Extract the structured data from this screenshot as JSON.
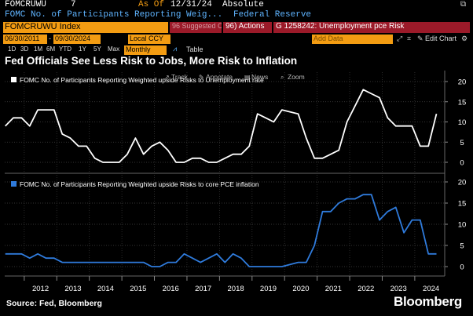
{
  "header": {
    "ticker": "FOMCRUWU",
    "page_num": "7",
    "as_of_label": "As Of",
    "as_of_date": "12/31/24",
    "absolute_label": "Absolute",
    "description": "FOMC No. of Participants Reporting Weig...",
    "source_name": "Federal Reserve",
    "index_box": "FOMCRUWU Index",
    "suggested_charts": "96 Suggested Charts",
    "actions": "96) Actions",
    "g_chart": "G 1258242: Unemployment pce Risk"
  },
  "controls": {
    "start_date": "06/30/2011",
    "end_date": "09/30/2024",
    "currency": "Local CCY",
    "add_data": "Add Data",
    "edit_chart": "Edit Chart",
    "range_buttons": [
      "1D",
      "3D",
      "1M",
      "6M",
      "YTD",
      "1Y",
      "5Y",
      "Max"
    ],
    "frequency": "Monthly",
    "table_label": "Table",
    "toolbar": [
      "Track",
      "Annotate",
      "News",
      "Zoom"
    ]
  },
  "headline": "Fed Officials See Less Risk to Jobs, More Risk to Inflation",
  "footer": {
    "source": "Source: Fed, Bloomberg",
    "brand": "Bloomberg"
  },
  "colors": {
    "series1": "#ffffff",
    "series2": "#2f7bdc",
    "accent_orange": "#f39c12",
    "accent_red": "#9b1a29"
  },
  "chart_data": [
    {
      "type": "line",
      "title": "FOMC No. of Participants Reporting Weighted upside Risks to Unemployment rate",
      "x": [
        "2011-06",
        "2011-09",
        "2011-12",
        "2012-03",
        "2012-06",
        "2012-09",
        "2012-12",
        "2013-03",
        "2013-06",
        "2013-09",
        "2013-12",
        "2014-03",
        "2014-06",
        "2014-09",
        "2014-12",
        "2015-03",
        "2015-06",
        "2015-09",
        "2015-12",
        "2016-03",
        "2016-06",
        "2016-09",
        "2016-12",
        "2017-03",
        "2017-06",
        "2017-09",
        "2017-12",
        "2018-03",
        "2018-06",
        "2018-09",
        "2018-12",
        "2019-03",
        "2019-06",
        "2019-09",
        "2019-12",
        "2020-06",
        "2020-09",
        "2020-12",
        "2021-03",
        "2021-06",
        "2021-09",
        "2021-12",
        "2022-03",
        "2022-06",
        "2022-09",
        "2022-12",
        "2023-03",
        "2023-06",
        "2023-09",
        "2023-12",
        "2024-03",
        "2024-06",
        "2024-09"
      ],
      "values": [
        9,
        11,
        11,
        9,
        13,
        13,
        13,
        7,
        6,
        4,
        4,
        1,
        0,
        0,
        0,
        2,
        6,
        2,
        4,
        5,
        3,
        0,
        0,
        1,
        1,
        0,
        0,
        1,
        2,
        2,
        4,
        12,
        11,
        10,
        13,
        12,
        6,
        1,
        1,
        2,
        3,
        10,
        14,
        18,
        17,
        16,
        11,
        9,
        9,
        9,
        4,
        4,
        12
      ],
      "ylim": [
        -2,
        20
      ],
      "yticks": [
        0,
        5,
        10,
        15,
        20
      ]
    },
    {
      "type": "line",
      "title": "FOMC No. of Participants Reporting Weighted upside Risks to core PCE inflation",
      "x": [
        "2011-06",
        "2011-09",
        "2011-12",
        "2012-03",
        "2012-06",
        "2012-09",
        "2012-12",
        "2013-03",
        "2013-06",
        "2013-09",
        "2013-12",
        "2014-03",
        "2014-06",
        "2014-09",
        "2014-12",
        "2015-03",
        "2015-06",
        "2015-09",
        "2015-12",
        "2016-03",
        "2016-06",
        "2016-09",
        "2016-12",
        "2017-03",
        "2017-06",
        "2017-09",
        "2017-12",
        "2018-03",
        "2018-06",
        "2018-09",
        "2018-12",
        "2019-03",
        "2019-06",
        "2019-09",
        "2019-12",
        "2020-06",
        "2020-09",
        "2020-12",
        "2021-03",
        "2021-06",
        "2021-09",
        "2021-12",
        "2022-03",
        "2022-06",
        "2022-09",
        "2022-12",
        "2023-03",
        "2023-06",
        "2023-09",
        "2023-12",
        "2024-03",
        "2024-06",
        "2024-09"
      ],
      "values": [
        3,
        3,
        3,
        2,
        3,
        2,
        2,
        1,
        1,
        1,
        1,
        1,
        1,
        1,
        1,
        1,
        1,
        1,
        0,
        0,
        1,
        1,
        3,
        2,
        1,
        2,
        3,
        1,
        3,
        2,
        0,
        0,
        0,
        0,
        0,
        1,
        1,
        5,
        13,
        13,
        15,
        16,
        16,
        17,
        17,
        11,
        13,
        14,
        8,
        11,
        11,
        3,
        3
      ],
      "ylim": [
        -2,
        20
      ],
      "yticks": [
        0,
        5,
        10,
        15,
        20
      ]
    }
  ],
  "x_axis": {
    "tick_labels": [
      "2012",
      "2013",
      "2014",
      "2015",
      "2016",
      "2017",
      "2018",
      "2019",
      "2020",
      "2021",
      "2022",
      "2023",
      "2024"
    ]
  }
}
